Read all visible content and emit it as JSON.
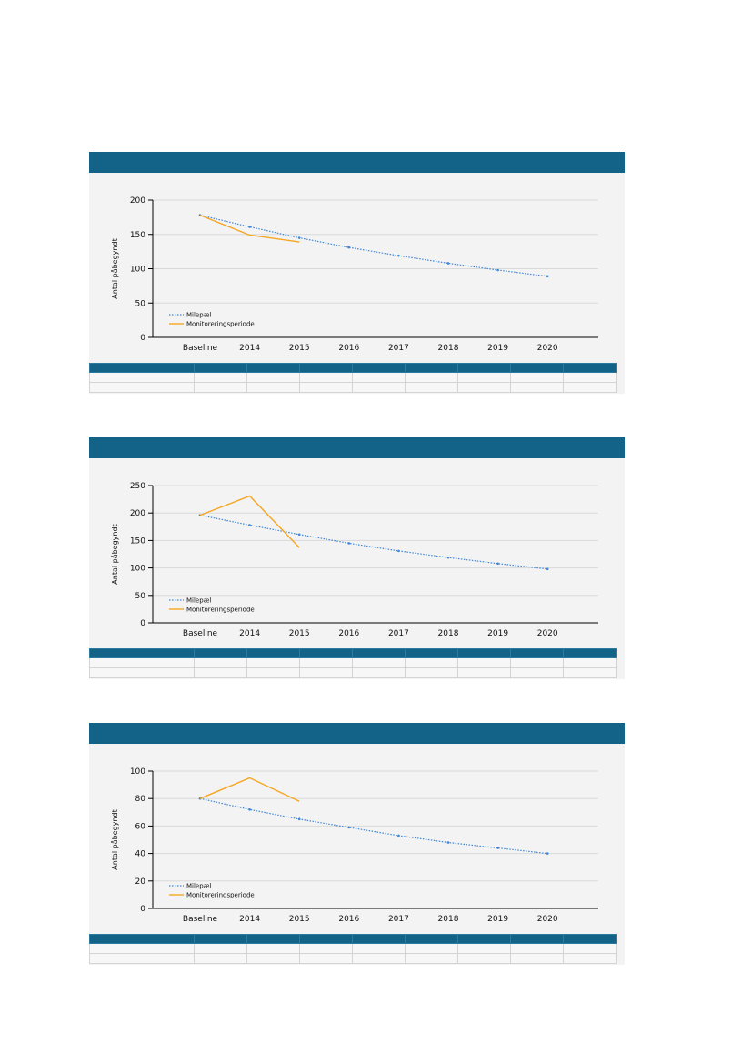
{
  "legend": {
    "milestone": "Milepæl",
    "monitoring": "Monitoreringsperiode"
  },
  "colors": {
    "header": "#136389",
    "milestone": "#3f86d6",
    "monitoring": "#f5a623",
    "grid": "#d9d9d9"
  },
  "chart_data": [
    {
      "type": "line",
      "ylabel": "Antal påbegyndt",
      "categories": [
        "Baseline",
        "2014",
        "2015",
        "2016",
        "2017",
        "2018",
        "2019",
        "2020"
      ],
      "ylim": [
        0,
        200
      ],
      "yticks": [
        0,
        50,
        100,
        150,
        200
      ],
      "grid": true,
      "legend_position": "bottom-left",
      "series": [
        {
          "name": "Milepæl",
          "style": "dotted",
          "values": [
            178,
            161,
            145,
            131,
            119,
            108,
            98,
            89
          ]
        },
        {
          "name": "Monitoreringsperiode",
          "style": "solid",
          "values": [
            178,
            149,
            139,
            null,
            null,
            null,
            null,
            null
          ]
        }
      ]
    },
    {
      "type": "line",
      "ylabel": "Antal påbegyndt",
      "categories": [
        "Baseline",
        "2014",
        "2015",
        "2016",
        "2017",
        "2018",
        "2019",
        "2020"
      ],
      "ylim": [
        0,
        250
      ],
      "yticks": [
        0,
        50,
        100,
        150,
        200,
        250
      ],
      "grid": true,
      "legend_position": "bottom-left",
      "series": [
        {
          "name": "Milepæl",
          "style": "dotted",
          "values": [
            196,
            178,
            161,
            145,
            131,
            119,
            108,
            98
          ]
        },
        {
          "name": "Monitoreringsperiode",
          "style": "solid",
          "values": [
            196,
            231,
            137,
            null,
            null,
            null,
            null,
            null
          ]
        }
      ]
    },
    {
      "type": "line",
      "ylabel": "Antal påbegyndt",
      "categories": [
        "Baseline",
        "2014",
        "2015",
        "2016",
        "2017",
        "2018",
        "2019",
        "2020"
      ],
      "ylim": [
        0,
        100
      ],
      "yticks": [
        0,
        20,
        40,
        60,
        80,
        100
      ],
      "grid": true,
      "legend_position": "bottom-left",
      "series": [
        {
          "name": "Milepæl",
          "style": "dotted",
          "values": [
            80,
            72,
            65,
            59,
            53,
            48,
            44,
            40
          ]
        },
        {
          "name": "Monitoreringsperiode",
          "style": "solid",
          "values": [
            80,
            95,
            78,
            null,
            null,
            null,
            null,
            null
          ]
        }
      ]
    }
  ]
}
